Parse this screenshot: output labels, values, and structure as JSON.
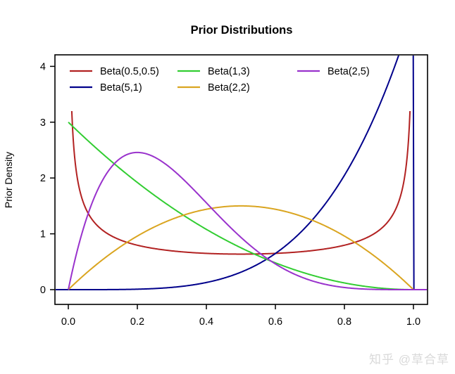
{
  "watermark": "知乎 @草合草",
  "chart_data": {
    "type": "line",
    "title": "Prior Distributions",
    "xlabel": "",
    "ylabel": "Prior Density",
    "xlim": [
      0.0,
      1.0
    ],
    "ylim": [
      0,
      4
    ],
    "xticks": [
      0.0,
      0.2,
      0.4,
      0.6,
      0.8,
      1.0
    ],
    "xtick_labels": [
      "0.0",
      "0.2",
      "0.4",
      "0.6",
      "0.8",
      "1.0"
    ],
    "yticks": [
      0,
      1,
      2,
      3,
      4
    ],
    "ytick_labels": [
      "0",
      "1",
      "2",
      "3",
      "4"
    ],
    "grid": false,
    "legend": {
      "position": "top-left-inside",
      "border": false,
      "columns": 3,
      "rows": 2
    },
    "series": [
      {
        "name": "Beta(0.5,0.5)",
        "color": "#B22222",
        "distribution": "beta",
        "params": [
          0.5,
          0.5
        ],
        "norm_const": 0.3183099,
        "x_range": [
          0.01,
          0.99
        ],
        "sample_points": {
          "x": [
            0.01,
            0.05,
            0.1,
            0.2,
            0.3,
            0.4,
            0.5,
            0.6,
            0.7,
            0.8,
            0.9,
            0.95,
            0.99
          ],
          "y": [
            3.199,
            1.461,
            1.061,
            0.796,
            0.695,
            0.65,
            0.637,
            0.65,
            0.695,
            0.796,
            1.061,
            1.461,
            3.199
          ]
        }
      },
      {
        "name": "Beta(5,1)",
        "color": "#00008B",
        "distribution": "beta",
        "params": [
          5,
          1
        ],
        "norm_const": 5,
        "x_range": [
          -0.042,
          1.042
        ],
        "sample_points": {
          "x": [
            0,
            0.1,
            0.2,
            0.3,
            0.4,
            0.5,
            0.6,
            0.7,
            0.8,
            0.9,
            0.95,
            1.0
          ],
          "y": [
            0,
            0.001,
            0.008,
            0.041,
            0.128,
            0.313,
            0.648,
            1.2,
            2.048,
            3.28,
            4.073,
            5.0
          ]
        }
      },
      {
        "name": "Beta(1,3)",
        "color": "#32CD32",
        "distribution": "beta",
        "params": [
          1,
          3
        ],
        "norm_const": 3,
        "x_range": [
          0,
          1.042
        ],
        "sample_points": {
          "x": [
            0,
            0.1,
            0.2,
            0.3,
            0.4,
            0.5,
            0.6,
            0.7,
            0.8,
            0.9,
            1.0
          ],
          "y": [
            3.0,
            2.43,
            1.92,
            1.47,
            1.08,
            0.75,
            0.48,
            0.27,
            0.12,
            0.03,
            0
          ]
        }
      },
      {
        "name": "Beta(2,2)",
        "color": "#DAA520",
        "distribution": "beta",
        "params": [
          2,
          2
        ],
        "norm_const": 6,
        "x_range": [
          0,
          1.042
        ],
        "sample_points": {
          "x": [
            0,
            0.1,
            0.2,
            0.3,
            0.4,
            0.5,
            0.6,
            0.7,
            0.8,
            0.9,
            1.0
          ],
          "y": [
            0,
            0.54,
            0.96,
            1.26,
            1.44,
            1.5,
            1.44,
            1.26,
            0.96,
            0.54,
            0
          ]
        }
      },
      {
        "name": "Beta(2,5)",
        "color": "#9932CC",
        "distribution": "beta",
        "params": [
          2,
          5
        ],
        "norm_const": 30,
        "x_range": [
          0,
          1.042
        ],
        "sample_points": {
          "x": [
            0,
            0.1,
            0.2,
            0.3,
            0.4,
            0.5,
            0.6,
            0.7,
            0.8,
            0.9,
            1.0
          ],
          "y": [
            0,
            1.968,
            2.458,
            2.161,
            1.555,
            0.938,
            0.461,
            0.17,
            0.038,
            0.003,
            0
          ]
        }
      }
    ]
  }
}
